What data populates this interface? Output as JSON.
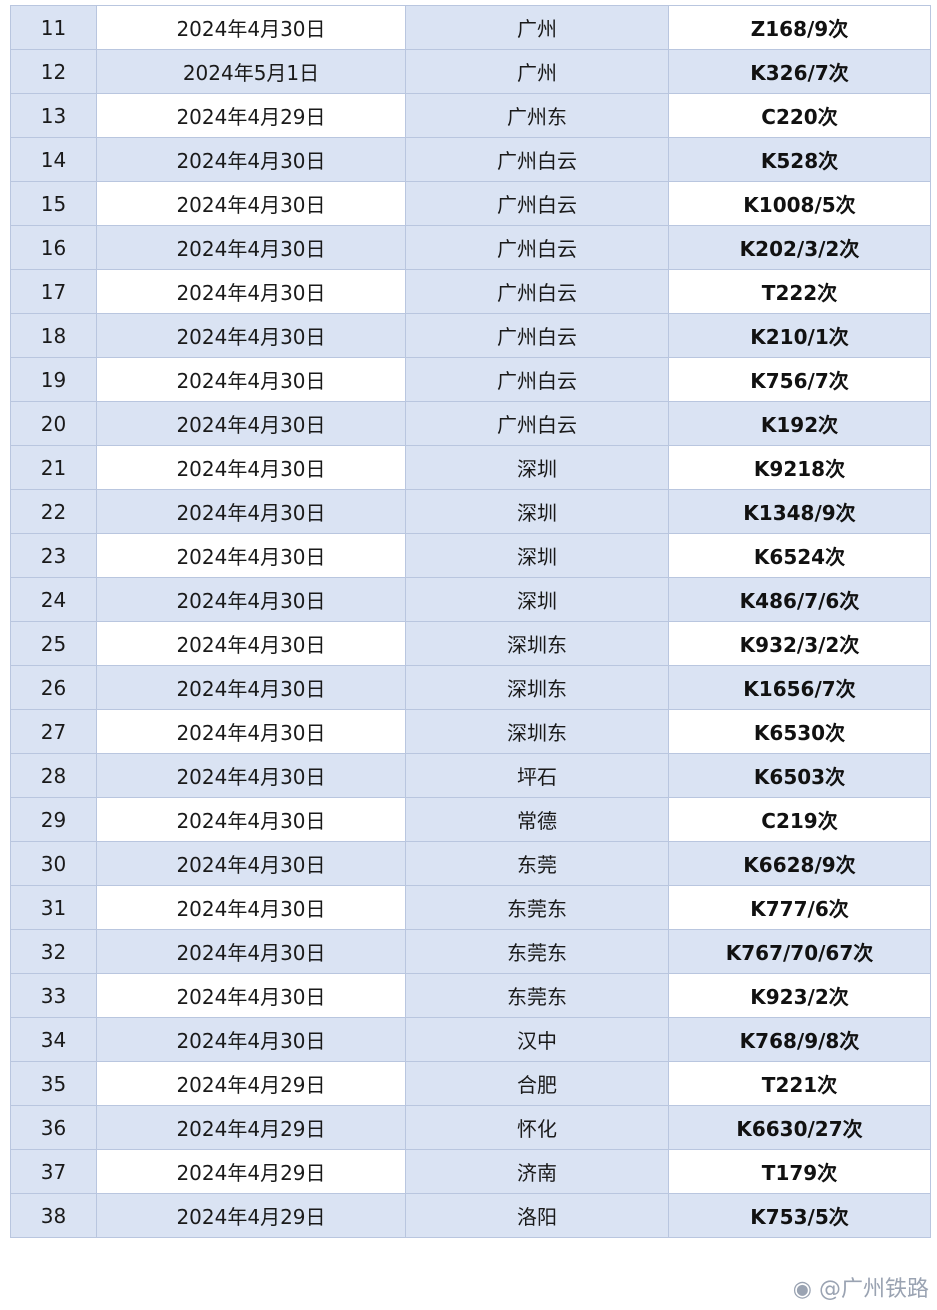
{
  "table": {
    "rows": [
      {
        "no": "11",
        "date": "2024年4月30日",
        "station": "广州",
        "train": "Z168/9次"
      },
      {
        "no": "12",
        "date": "2024年5月1日",
        "station": "广州",
        "train": "K326/7次"
      },
      {
        "no": "13",
        "date": "2024年4月29日",
        "station": "广州东",
        "train": "C220次"
      },
      {
        "no": "14",
        "date": "2024年4月30日",
        "station": "广州白云",
        "train": "K528次"
      },
      {
        "no": "15",
        "date": "2024年4月30日",
        "station": "广州白云",
        "train": "K1008/5次"
      },
      {
        "no": "16",
        "date": "2024年4月30日",
        "station": "广州白云",
        "train": "K202/3/2次"
      },
      {
        "no": "17",
        "date": "2024年4月30日",
        "station": "广州白云",
        "train": "T222次"
      },
      {
        "no": "18",
        "date": "2024年4月30日",
        "station": "广州白云",
        "train": "K210/1次"
      },
      {
        "no": "19",
        "date": "2024年4月30日",
        "station": "广州白云",
        "train": "K756/7次"
      },
      {
        "no": "20",
        "date": "2024年4月30日",
        "station": "广州白云",
        "train": "K192次"
      },
      {
        "no": "21",
        "date": "2024年4月30日",
        "station": "深圳",
        "train": "K9218次"
      },
      {
        "no": "22",
        "date": "2024年4月30日",
        "station": "深圳",
        "train": "K1348/9次"
      },
      {
        "no": "23",
        "date": "2024年4月30日",
        "station": "深圳",
        "train": "K6524次"
      },
      {
        "no": "24",
        "date": "2024年4月30日",
        "station": "深圳",
        "train": "K486/7/6次"
      },
      {
        "no": "25",
        "date": "2024年4月30日",
        "station": "深圳东",
        "train": "K932/3/2次"
      },
      {
        "no": "26",
        "date": "2024年4月30日",
        "station": "深圳东",
        "train": "K1656/7次"
      },
      {
        "no": "27",
        "date": "2024年4月30日",
        "station": "深圳东",
        "train": "K6530次"
      },
      {
        "no": "28",
        "date": "2024年4月30日",
        "station": "坪石",
        "train": "K6503次"
      },
      {
        "no": "29",
        "date": "2024年4月30日",
        "station": "常德",
        "train": "C219次"
      },
      {
        "no": "30",
        "date": "2024年4月30日",
        "station": "东莞",
        "train": "K6628/9次"
      },
      {
        "no": "31",
        "date": "2024年4月30日",
        "station": "东莞东",
        "train": "K777/6次"
      },
      {
        "no": "32",
        "date": "2024年4月30日",
        "station": "东莞东",
        "train": "K767/70/67次"
      },
      {
        "no": "33",
        "date": "2024年4月30日",
        "station": "东莞东",
        "train": "K923/2次"
      },
      {
        "no": "34",
        "date": "2024年4月30日",
        "station": "汉中",
        "train": "K768/9/8次"
      },
      {
        "no": "35",
        "date": "2024年4月29日",
        "station": "合肥",
        "train": "T221次"
      },
      {
        "no": "36",
        "date": "2024年4月29日",
        "station": "怀化",
        "train": "K6630/27次"
      },
      {
        "no": "37",
        "date": "2024年4月29日",
        "station": "济南",
        "train": "T179次"
      },
      {
        "no": "38",
        "date": "2024年4月29日",
        "station": "洛阳",
        "train": "K753/5次"
      }
    ]
  },
  "watermark": "@广州铁路",
  "colors": {
    "cell_blue": "#dae3f3",
    "border": "#b9c6df"
  }
}
